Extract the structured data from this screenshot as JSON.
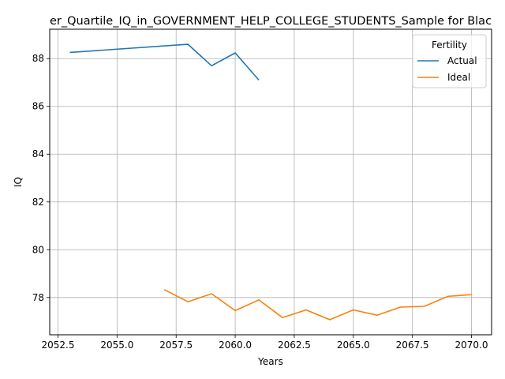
{
  "chart_data": {
    "type": "line",
    "title": "er_Quartile_IQ_in_GOVERNMENT_HELP_COLLEGE_STUDENTS_Sample for Blac",
    "xlabel": "Years",
    "ylabel": "IQ",
    "xlim": [
      2052.15,
      2070.85
    ],
    "ylim": [
      76.44,
      89.23
    ],
    "xticks": [
      2052.5,
      2055.0,
      2057.5,
      2060.0,
      2062.5,
      2065.0,
      2067.5,
      2070.0
    ],
    "xtick_labels": [
      "2052.5",
      "2055.0",
      "2057.5",
      "2060.0",
      "2062.5",
      "2065.0",
      "2067.5",
      "2070.0"
    ],
    "yticks": [
      78,
      80,
      82,
      84,
      86,
      88
    ],
    "ytick_labels": [
      "78",
      "80",
      "82",
      "84",
      "86",
      "88"
    ],
    "grid": true,
    "legend": {
      "title": "Fertility",
      "placement": "top-right"
    },
    "series": [
      {
        "name": "Actual",
        "color": "#1f77b4",
        "x": [
          2053,
          2058,
          2059,
          2060,
          2061
        ],
        "y": [
          88.26,
          88.6,
          87.7,
          88.24,
          87.1
        ]
      },
      {
        "name": "Ideal",
        "color": "#ff7f0e",
        "x": [
          2057,
          2058,
          2059,
          2060,
          2061,
          2062,
          2063,
          2064,
          2065,
          2066,
          2067,
          2068,
          2069,
          2070
        ],
        "y": [
          78.33,
          77.82,
          78.16,
          77.45,
          77.9,
          77.16,
          77.48,
          77.07,
          77.48,
          77.26,
          77.6,
          77.63,
          78.05,
          78.12
        ]
      }
    ]
  }
}
